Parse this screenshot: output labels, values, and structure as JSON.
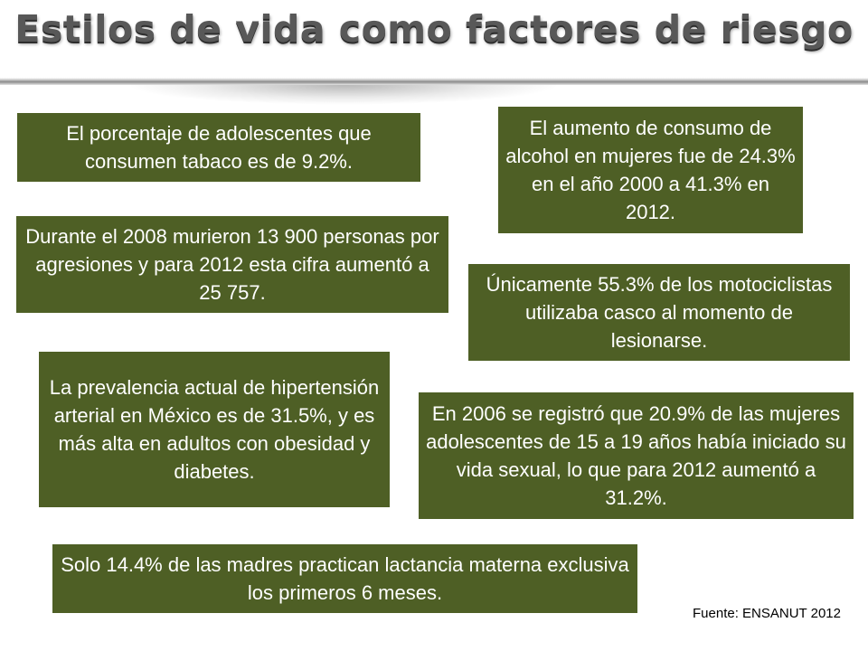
{
  "slide": {
    "title": "Estilos de vida como factores de riesgo",
    "source": "Fuente: ENSANUT 2012"
  },
  "boxes": {
    "tabaco": "El porcentaje de adolescentes que consumen tabaco es de 9.2%.",
    "alcohol": "El aumento de consumo de alcohol en mujeres fue de 24.3% en el año 2000 a 41.3% en 2012.",
    "agresiones": "Durante el 2008 murieron 13 900 personas por agresiones y para 2012 esta cifra aumentó a 25 757.",
    "casco": "Únicamente 55.3% de los motociclistas utilizaba casco al momento de lesionarse.",
    "hipertension": "La prevalencia actual de hipertensión arterial en México es de 31.5%, y es más alta en adultos con obesidad y diabetes.",
    "sexual": "En 2006 se registró que 20.9% de las mujeres adolescentes de 15 a 19 años había iniciado su vida sexual, lo que para 2012 aumentó a 31.2%.",
    "lactancia": "Solo 14.4% de las madres practican lactancia materna exclusiva los primeros 6 meses."
  },
  "colors": {
    "box_background": "#4e5f25",
    "box_text": "#ffffff",
    "title_text": "#585858"
  }
}
